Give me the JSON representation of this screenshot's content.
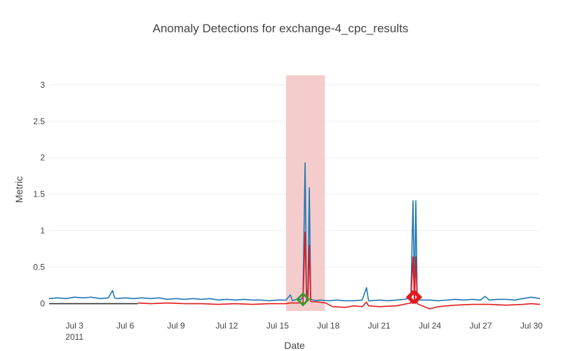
{
  "chart_data": {
    "type": "line",
    "title": "Anomaly Detections for exchange-4_cpc_results",
    "xlabel": "Date",
    "ylabel": "Metric",
    "xlim": [
      "2011-07-01T12:00",
      "2011-07-30T12:00"
    ],
    "ylim": [
      -0.1,
      3.2
    ],
    "x_ticks": [
      {
        "date": "2011-07-03",
        "label": "Jul 3",
        "sublabel": "2011"
      },
      {
        "date": "2011-07-06",
        "label": "Jul 6"
      },
      {
        "date": "2011-07-09",
        "label": "Jul 9"
      },
      {
        "date": "2011-07-12",
        "label": "Jul 12"
      },
      {
        "date": "2011-07-15",
        "label": "Jul 15"
      },
      {
        "date": "2011-07-18",
        "label": "Jul 18"
      },
      {
        "date": "2011-07-21",
        "label": "Jul 21"
      },
      {
        "date": "2011-07-24",
        "label": "Jul 24"
      },
      {
        "date": "2011-07-27",
        "label": "Jul 27"
      },
      {
        "date": "2011-07-30",
        "label": "Jul 30"
      }
    ],
    "y_ticks": [
      {
        "value": 0,
        "label": "0"
      },
      {
        "value": 0.5,
        "label": "0.5"
      },
      {
        "value": 1,
        "label": "1"
      },
      {
        "value": 1.5,
        "label": "1.5"
      },
      {
        "value": 2,
        "label": "2"
      },
      {
        "value": 2.5,
        "label": "2.5"
      },
      {
        "value": 3,
        "label": "3"
      }
    ],
    "grid": true,
    "legend": "none",
    "highlight_window": {
      "start": "2011-07-15T12:00",
      "end": "2011-07-17T19:00",
      "y": [
        -0.1,
        3.13
      ],
      "color": "#f4cccc"
    },
    "series": [
      {
        "color": "#1f77b4",
        "points": [
          [
            "2011-07-01T12:00",
            0.07
          ],
          [
            "2011-07-02T00:00",
            0.08
          ],
          [
            "2011-07-02T12:00",
            0.07
          ],
          [
            "2011-07-03T00:00",
            0.09
          ],
          [
            "2011-07-03T12:00",
            0.08
          ],
          [
            "2011-07-04T00:00",
            0.09
          ],
          [
            "2011-07-04T12:00",
            0.07
          ],
          [
            "2011-07-05T00:00",
            0.08
          ],
          [
            "2011-07-05T06:00",
            0.18
          ],
          [
            "2011-07-05T09:00",
            0.08
          ],
          [
            "2011-07-05T12:00",
            0.07
          ],
          [
            "2011-07-06T00:00",
            0.08
          ],
          [
            "2011-07-06T12:00",
            0.07
          ],
          [
            "2011-07-07T00:00",
            0.08
          ],
          [
            "2011-07-07T12:00",
            0.07
          ],
          [
            "2011-07-08T00:00",
            0.08
          ],
          [
            "2011-07-08T12:00",
            0.06
          ],
          [
            "2011-07-09T00:00",
            0.07
          ],
          [
            "2011-07-09T12:00",
            0.06
          ],
          [
            "2011-07-10T00:00",
            0.07
          ],
          [
            "2011-07-10T12:00",
            0.06
          ],
          [
            "2011-07-11T00:00",
            0.07
          ],
          [
            "2011-07-11T12:00",
            0.05
          ],
          [
            "2011-07-12T00:00",
            0.06
          ],
          [
            "2011-07-12T12:00",
            0.05
          ],
          [
            "2011-07-13T00:00",
            0.06
          ],
          [
            "2011-07-13T12:00",
            0.05
          ],
          [
            "2011-07-14T00:00",
            0.05
          ],
          [
            "2011-07-14T12:00",
            0.04
          ],
          [
            "2011-07-15T00:00",
            0.05
          ],
          [
            "2011-07-15T12:00",
            0.05
          ],
          [
            "2011-07-15T18:00",
            0.12
          ],
          [
            "2011-07-15T21:00",
            0.04
          ],
          [
            "2011-07-16T00:00",
            0.05
          ],
          [
            "2011-07-16T06:00",
            0.07
          ],
          [
            "2011-07-16T09:00",
            0.05
          ],
          [
            "2011-07-16T12:00",
            0.1
          ],
          [
            "2011-07-16T15:00",
            1.93
          ],
          [
            "2011-07-16T17:00",
            0.1
          ],
          [
            "2011-07-16T19:00",
            0.2
          ],
          [
            "2011-07-16T21:00",
            1.59
          ],
          [
            "2011-07-16T23:00",
            0.06
          ],
          [
            "2011-07-17T06:00",
            0.04
          ],
          [
            "2011-07-17T12:00",
            0.05
          ],
          [
            "2011-07-18T00:00",
            0.04
          ],
          [
            "2011-07-18T12:00",
            0.05
          ],
          [
            "2011-07-19T00:00",
            0.04
          ],
          [
            "2011-07-19T12:00",
            0.04
          ],
          [
            "2011-07-20T00:00",
            0.05
          ],
          [
            "2011-07-20T06:00",
            0.22
          ],
          [
            "2011-07-20T09:00",
            0.04
          ],
          [
            "2011-07-20T12:00",
            0.04
          ],
          [
            "2011-07-21T00:00",
            0.05
          ],
          [
            "2011-07-21T12:00",
            0.04
          ],
          [
            "2011-07-22T00:00",
            0.05
          ],
          [
            "2011-07-22T12:00",
            0.06
          ],
          [
            "2011-07-22T21:00",
            0.08
          ],
          [
            "2011-07-23T00:00",
            1.41
          ],
          [
            "2011-07-23T02:00",
            0.08
          ],
          [
            "2011-07-23T04:00",
            1.41
          ],
          [
            "2011-07-23T06:00",
            0.06
          ],
          [
            "2011-07-23T12:00",
            0.05
          ],
          [
            "2011-07-24T00:00",
            0.05
          ],
          [
            "2011-07-24T12:00",
            0.04
          ],
          [
            "2011-07-25T00:00",
            0.05
          ],
          [
            "2011-07-25T12:00",
            0.06
          ],
          [
            "2011-07-26T00:00",
            0.05
          ],
          [
            "2011-07-26T12:00",
            0.06
          ],
          [
            "2011-07-27T00:00",
            0.05
          ],
          [
            "2011-07-27T06:00",
            0.1
          ],
          [
            "2011-07-27T12:00",
            0.05
          ],
          [
            "2011-07-28T00:00",
            0.06
          ],
          [
            "2011-07-28T12:00",
            0.06
          ],
          [
            "2011-07-29T00:00",
            0.05
          ],
          [
            "2011-07-29T12:00",
            0.07
          ],
          [
            "2011-07-30T00:00",
            0.09
          ],
          [
            "2011-07-30T12:00",
            0.07
          ]
        ]
      },
      {
        "color": "#e31a1c",
        "points": [
          [
            "2011-07-06T18:00",
            0.01
          ],
          [
            "2011-07-07T12:00",
            0.0
          ],
          [
            "2011-07-08T12:00",
            0.01
          ],
          [
            "2011-07-09T12:00",
            0.0
          ],
          [
            "2011-07-10T12:00",
            0.0
          ],
          [
            "2011-07-11T12:00",
            -0.01
          ],
          [
            "2011-07-12T12:00",
            0.0
          ],
          [
            "2011-07-13T12:00",
            -0.01
          ],
          [
            "2011-07-14T12:00",
            0.0
          ],
          [
            "2011-07-15T12:00",
            0.0
          ],
          [
            "2011-07-15T18:00",
            0.01
          ],
          [
            "2011-07-16T12:00",
            0.01
          ],
          [
            "2011-07-16T15:00",
            0.98
          ],
          [
            "2011-07-16T17:00",
            0.05
          ],
          [
            "2011-07-16T19:00",
            0.08
          ],
          [
            "2011-07-16T21:00",
            0.8
          ],
          [
            "2011-07-16T23:00",
            0.03
          ],
          [
            "2011-07-17T12:00",
            0.02
          ],
          [
            "2011-07-17T20:00",
            0.01
          ],
          [
            "2011-07-18T06:00",
            -0.04
          ],
          [
            "2011-07-19T00:00",
            -0.05
          ],
          [
            "2011-07-19T12:00",
            -0.03
          ],
          [
            "2011-07-20T00:00",
            -0.04
          ],
          [
            "2011-07-20T06:00",
            0.02
          ],
          [
            "2011-07-20T09:00",
            -0.03
          ],
          [
            "2011-07-21T00:00",
            -0.04
          ],
          [
            "2011-07-22T00:00",
            -0.03
          ],
          [
            "2011-07-22T21:00",
            0.01
          ],
          [
            "2011-07-23T00:00",
            0.64
          ],
          [
            "2011-07-23T02:00",
            0.02
          ],
          [
            "2011-07-23T04:00",
            0.64
          ],
          [
            "2011-07-23T06:00",
            0.0
          ],
          [
            "2011-07-23T18:00",
            -0.05
          ],
          [
            "2011-07-24T00:00",
            -0.07
          ],
          [
            "2011-07-24T12:00",
            -0.04
          ],
          [
            "2011-07-25T12:00",
            -0.02
          ],
          [
            "2011-07-26T12:00",
            -0.01
          ],
          [
            "2011-07-27T12:00",
            -0.01
          ],
          [
            "2011-07-28T12:00",
            -0.02
          ],
          [
            "2011-07-29T12:00",
            -0.01
          ],
          [
            "2011-07-30T00:00",
            0.0
          ],
          [
            "2011-07-30T12:00",
            -0.01
          ]
        ]
      },
      {
        "color": "#333333",
        "points": [
          [
            "2011-07-01T12:00",
            0.0
          ],
          [
            "2011-07-06T18:00",
            0.0
          ]
        ]
      }
    ],
    "markers": [
      {
        "date": "2011-07-16T12:00",
        "value": 0.06,
        "color": "#33a02c",
        "shape": "diamond"
      },
      {
        "date": "2011-07-23T00:00",
        "value": 0.09,
        "color": "#e31a1c",
        "shape": "diamond"
      },
      {
        "date": "2011-07-23T03:00",
        "value": 0.09,
        "color": "#e31a1c",
        "shape": "diamond"
      }
    ]
  }
}
